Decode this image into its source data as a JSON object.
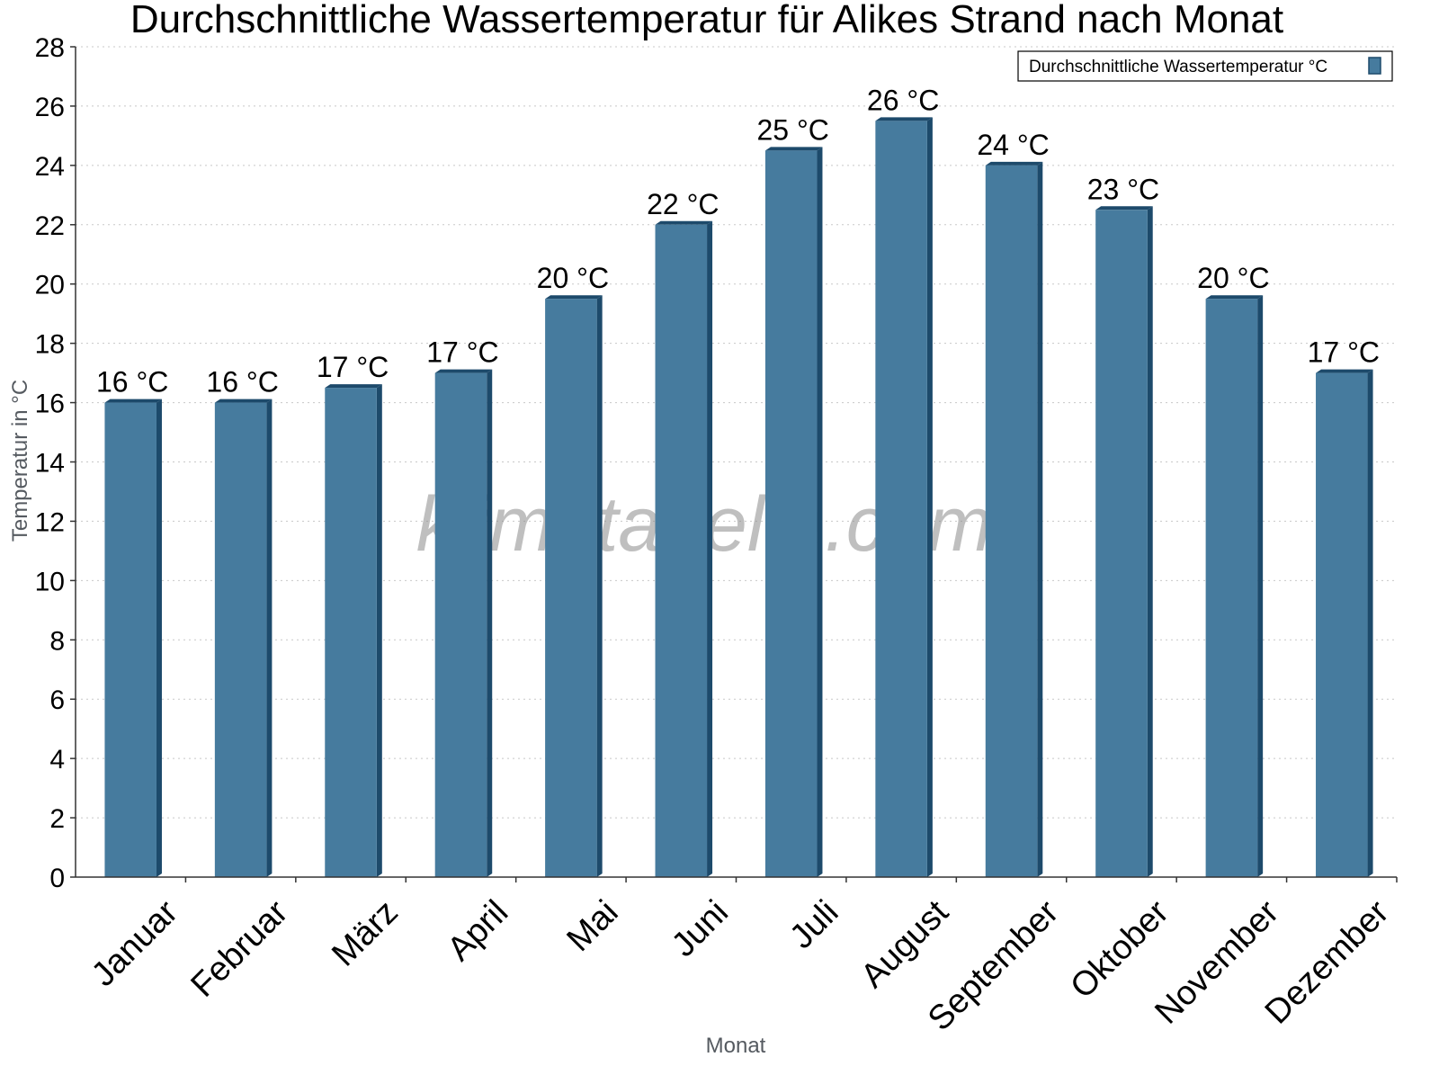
{
  "chart_data": {
    "type": "bar",
    "title": "Durchschnittliche Wassertemperatur für Alikes Strand nach Monat",
    "xlabel": "Monat",
    "ylabel": "Temperatur in °C",
    "categories": [
      "Januar",
      "Februar",
      "März",
      "April",
      "Mai",
      "Juni",
      "Juli",
      "August",
      "September",
      "Oktober",
      "November",
      "Dezember"
    ],
    "series": [
      {
        "name": "Durchschnittliche Wassertemperatur °C",
        "values": [
          16,
          16,
          16.5,
          17,
          19.5,
          22,
          24.5,
          25.5,
          24,
          22.5,
          19.5,
          17
        ],
        "labels": [
          "16 °C",
          "16 °C",
          "17 °C",
          "17 °C",
          "20 °C",
          "22 °C",
          "25 °C",
          "26 °C",
          "24 °C",
          "23 °C",
          "20 °C",
          "17 °C"
        ],
        "color": "#467b9e"
      }
    ],
    "ylim": [
      0,
      28
    ],
    "yticks": [
      0,
      2,
      4,
      6,
      8,
      10,
      12,
      14,
      16,
      18,
      20,
      22,
      24,
      26,
      28
    ],
    "grid": true,
    "legend_position": "top-right",
    "watermark": "klimatabelle.com",
    "colors": {
      "bar_face": "#467b9e",
      "bar_side": "#1d4a6b",
      "grid": "#c8c8c8",
      "axis": "#333333"
    }
  }
}
